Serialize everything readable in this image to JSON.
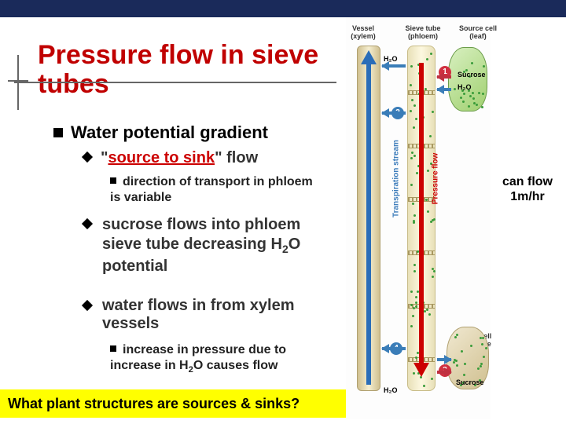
{
  "slide": {
    "title_line1": "Pressure flow in sieve",
    "title_line2": "tubes",
    "title_color": "#c00000",
    "heading": "Water potential gradient",
    "bullet1_prefix": "\"",
    "bullet1_link": "source to sink",
    "bullet1_suffix": "\" flow",
    "sub1": "direction of transport in phloem is variable",
    "bullet2": "sucrose flows into phloem sieve tube decreasing H",
    "bullet2_sub": "2",
    "bullet2_tail": "O potential",
    "bullet3": "water flows in from xylem vessels",
    "sub2a": "increase in pressure due to increase in H",
    "sub2_sub": "2",
    "sub2b": "O causes flow",
    "question": "What plant structures are sources & sinks?"
  },
  "right_note": {
    "line1": "can flow",
    "line2": "1m/hr"
  },
  "diagram": {
    "labels": {
      "vessel": "Vessel (xylem)",
      "sieve": "Sieve tube (phloem)",
      "source": "Source cell (leaf)",
      "sink": "Sink cell (storage root)",
      "transpiration": "Transpiration stream",
      "pressure_flow": "Pressure flow"
    },
    "tiny": {
      "h2o": "H₂O",
      "sucrose": "Sucrose"
    },
    "colors": {
      "xylem_arrow": "#2a6db8",
      "phloem_arrow": "#c00000",
      "source_fill": "#a0d070",
      "sink_fill": "#d0c090",
      "dot": "#3a9c3a"
    },
    "circles": {
      "n1": "1",
      "n2": "2",
      "n3": "3",
      "n4": "4"
    },
    "phloem_plates_y": [
      56,
      124,
      192,
      260,
      328,
      396
    ]
  }
}
